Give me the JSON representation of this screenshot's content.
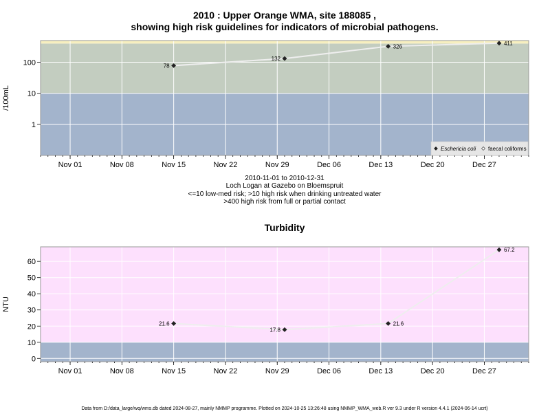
{
  "chart_data": [
    {
      "type": "line",
      "title_line1": "2010 : Upper Orange WMA, site 188085 ,",
      "title_line2": "showing high risk guidelines for indicators of microbial pathogens.",
      "ylabel": "/100mL",
      "yscale": "log",
      "ylim": [
        0.1,
        500
      ],
      "yticks": [
        1,
        10,
        100
      ],
      "ytick_labels": [
        "1",
        "10",
        "100"
      ],
      "xlim": [
        "2010-10-28",
        "2011-01-02"
      ],
      "xticks": [
        "2010-11-01",
        "2010-11-08",
        "2010-11-15",
        "2010-11-22",
        "2010-11-29",
        "2010-12-06",
        "2010-12-13",
        "2010-12-20",
        "2010-12-27"
      ],
      "xtick_labels": [
        "Nov 01",
        "Nov 08",
        "Nov 15",
        "Nov 22",
        "Nov 29",
        "Dec 06",
        "Dec 13",
        "Dec 20",
        "Dec 27"
      ],
      "bands": [
        {
          "from": 0.1,
          "to": 10,
          "color": "#a3b4cc"
        },
        {
          "from": 10,
          "to": 400,
          "color": "#c3cdc0"
        },
        {
          "from": 400,
          "to": 500,
          "color": "#f7efc0"
        }
      ],
      "series": [
        {
          "name": "Eschericia coli",
          "x": [
            "2010-11-15",
            "2010-11-30",
            "2010-12-14",
            "2010-12-29"
          ],
          "y": [
            78,
            132,
            326,
            411
          ],
          "labels": [
            "78",
            "132",
            "326",
            "411"
          ],
          "marker": "filled-diamond"
        }
      ],
      "legend": {
        "position": "bottom-right",
        "entries": [
          {
            "label": "Eschericia coli",
            "marker": "filled-diamond"
          },
          {
            "label": "faecal coliforms",
            "marker": "open-diamond"
          }
        ]
      },
      "caption": [
        "2010-11-01 to 2010-12-31",
        "Loch Logan at Gazebo on Bloemspruit",
        "<=10 low-med risk; >10 high risk when drinking untreated water",
        ">400 high risk from full or partial contact"
      ]
    },
    {
      "type": "line",
      "title": "Turbidity",
      "ylabel": "NTU",
      "ylim": [
        -2,
        69
      ],
      "yticks": [
        0,
        10,
        20,
        30,
        40,
        50,
        60
      ],
      "ytick_labels": [
        "0",
        "10",
        "20",
        "30",
        "40",
        "50",
        "60"
      ],
      "xlim": [
        "2010-10-28",
        "2011-01-02"
      ],
      "xticks": [
        "2010-11-01",
        "2010-11-08",
        "2010-11-15",
        "2010-11-22",
        "2010-11-29",
        "2010-12-06",
        "2010-12-13",
        "2010-12-20",
        "2010-12-27"
      ],
      "xtick_labels": [
        "Nov 01",
        "Nov 08",
        "Nov 15",
        "Nov 22",
        "Nov 29",
        "Dec 06",
        "Dec 13",
        "Dec 20",
        "Dec 27"
      ],
      "bands": [
        {
          "from": -2,
          "to": 10,
          "color": "#a3b4cc"
        },
        {
          "from": 10,
          "to": 69,
          "color": "#fde0fd"
        }
      ],
      "series": [
        {
          "name": "Turbidity",
          "x": [
            "2010-11-15",
            "2010-11-30",
            "2010-12-14",
            "2010-12-29"
          ],
          "y": [
            21.6,
            17.8,
            21.6,
            67.2
          ],
          "labels": [
            "21.6",
            "17.8",
            "21.6",
            "67.2"
          ],
          "marker": "filled-diamond"
        }
      ]
    }
  ],
  "footer": "Data from D:/data_large/wq/wms.db dated 2024-08-27, mainly NMMP programme. Plotted on 2024-10-25 13:26:48 using NMMP_WMA_web.R ver 9.3 under R version 4.4.1 (2024-06-14 ucrt)"
}
